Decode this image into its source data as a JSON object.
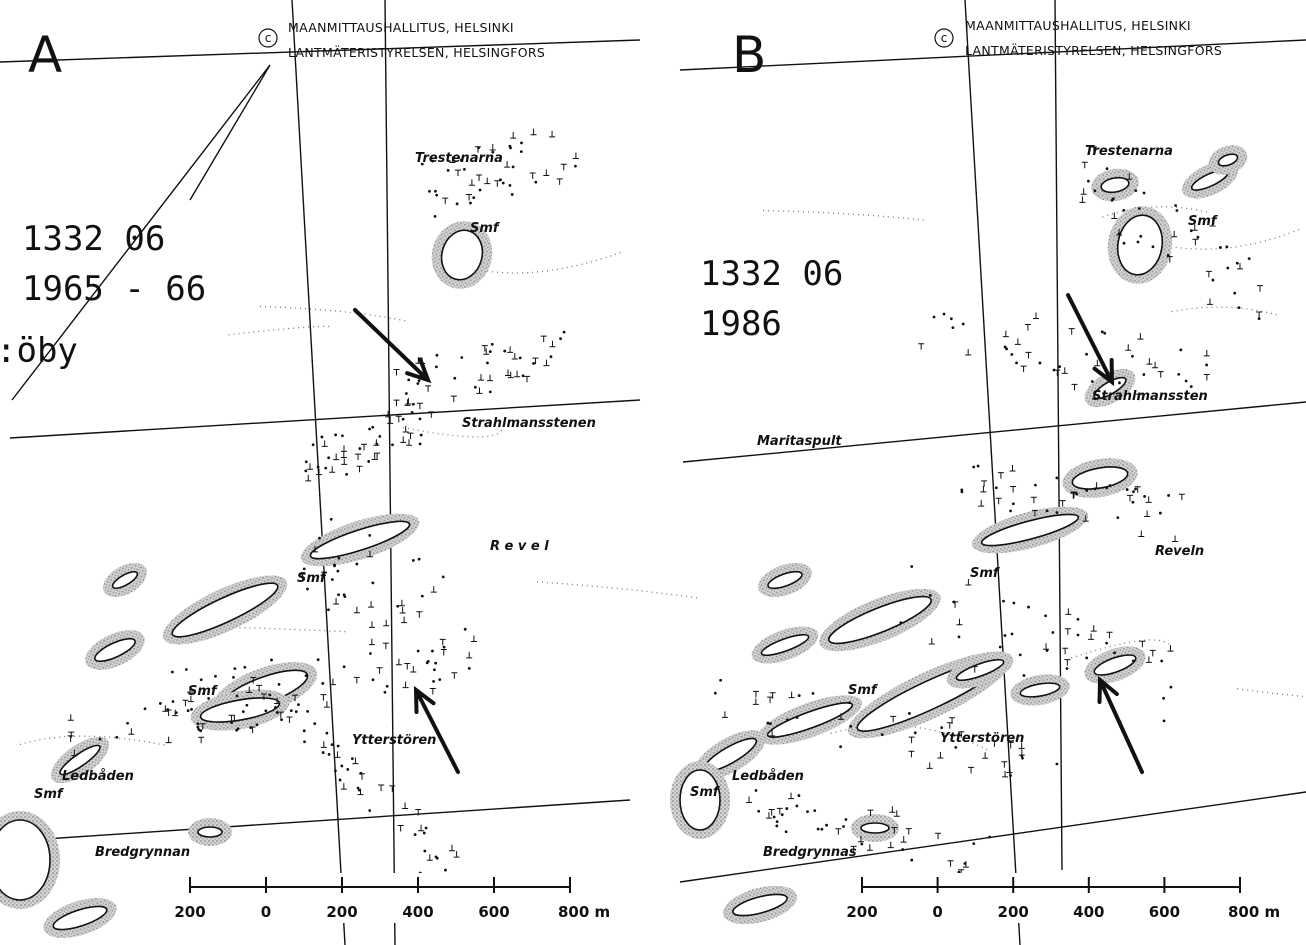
{
  "panels": [
    {
      "letter": "A",
      "copyright": "c",
      "agency": [
        "MAANMITTAUSHALLITUS, HELSINKI",
        "LANTMÄTERISTYRELSEN, HELSINGFORS"
      ],
      "sheet": [
        "1332 06",
        "1965 - 66"
      ],
      "edge_text": ":öby",
      "places": [
        "Trestenarna",
        "Smf",
        "Strahlmansstenen",
        "R e v e l",
        "Smf",
        "Smf",
        "Ytterstören",
        "Ledbåden",
        "Smf",
        "Bredgrynnan"
      ],
      "scale": [
        "200",
        "0",
        "200",
        "400",
        "600",
        "800 m"
      ]
    },
    {
      "letter": "B",
      "copyright": "c",
      "agency": [
        "MAANMITTAUSHALLITUS, HELSINKI",
        "LANTMÄTERISTYRELSEN, HELSINGFORS"
      ],
      "sheet": [
        "1332 06",
        "1986"
      ],
      "places": [
        "Trestenarna",
        "Smf",
        "Maritaspult",
        "Strahlmanssten",
        "Reveln",
        "Smf",
        "Smf",
        "Ytterstören",
        "Ledbåden",
        "Smf",
        "Bredgrynnas"
      ],
      "scale": [
        "200",
        "0",
        "200",
        "400",
        "600",
        "800 m"
      ]
    }
  ]
}
